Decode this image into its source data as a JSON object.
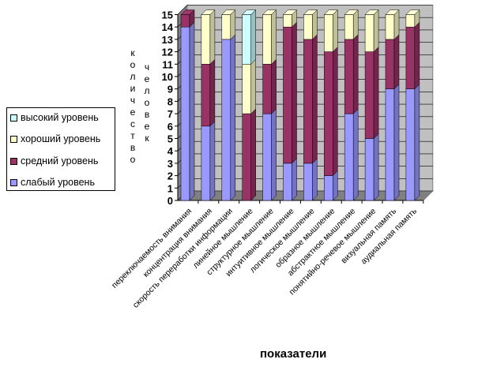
{
  "chart_data": {
    "type": "bar",
    "stacked": true,
    "categories": [
      "переключаемость внимания",
      "концентрация внимания",
      "скорость переработки информации",
      "линейное мышление",
      "структурное мышление",
      "интуитивное мышление",
      "логическое мышление",
      "образное мышление",
      "абстрактное мышление",
      "понятийно-речевое мышление",
      "визуальная память",
      "аудиальная память"
    ],
    "series": [
      {
        "name": "слабый уровень",
        "color": "#9999ff",
        "values": [
          14,
          6,
          13,
          0,
          7,
          3,
          3,
          2,
          7,
          5,
          9,
          9
        ]
      },
      {
        "name": "средний уровень",
        "color": "#993366",
        "values": [
          1,
          5,
          0,
          7,
          4,
          11,
          10,
          10,
          6,
          7,
          4,
          5
        ]
      },
      {
        "name": "хороший уровень",
        "color": "#ffffcc",
        "values": [
          0,
          4,
          2,
          4,
          4,
          1,
          2,
          3,
          2,
          3,
          2,
          1
        ]
      },
      {
        "name": "высокий уровень",
        "color": "#ccffff",
        "values": [
          0,
          0,
          0,
          4,
          0,
          0,
          0,
          0,
          0,
          0,
          0,
          0
        ]
      }
    ],
    "ylim": [
      0,
      15
    ],
    "yticks": [
      "0",
      "1",
      "2",
      "3",
      "4",
      "5",
      "6",
      "7",
      "8",
      "9",
      "10",
      "11",
      "12",
      "13",
      "14",
      "15"
    ],
    "ylabel_parts": [
      "количество",
      "человек"
    ],
    "xlabel": "показатели",
    "grid": true,
    "legend_position": "left",
    "wall_color": "#c0c0c0"
  }
}
